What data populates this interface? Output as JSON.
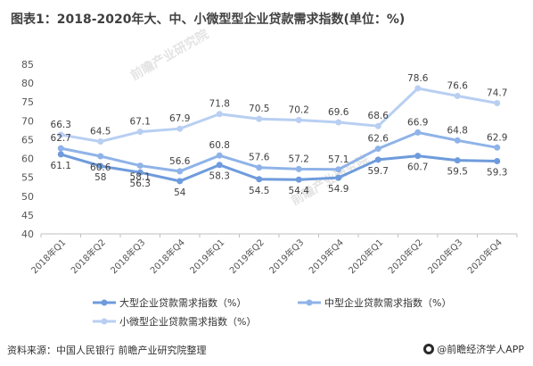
{
  "title": "图表1：2018-2020年大、中、小微型型企业贷款需求指数(单位：%)",
  "source": "资料来源：中国人民银行 前瞻产业研究院整理",
  "brand": "@前瞻经济学人APP",
  "watermark": "前瞻产业研究院",
  "chart_data": {
    "type": "line",
    "title": "图表1：2018-2020年大、中、小微型型企业贷款需求指数(单位：%)",
    "categories": [
      "2018年Q1",
      "2018年Q2",
      "2018年Q3",
      "2018年Q4",
      "2019年Q1",
      "2019年Q2",
      "2019年Q3",
      "2019年Q4",
      "2020年Q1",
      "2020年Q2",
      "2020年Q3",
      "2020年Q4"
    ],
    "ylim": [
      40,
      85
    ],
    "yticks": [
      40,
      45,
      50,
      55,
      60,
      65,
      70,
      75,
      80,
      85
    ],
    "grid": false,
    "legend": "bottom",
    "series": [
      {
        "name": "大型企业贷款需求指数（%）",
        "color": "#6e9bdc",
        "label_pos": "below",
        "values": [
          61.1,
          58,
          56.3,
          54,
          58.3,
          54.5,
          54.4,
          54.9,
          59.7,
          60.7,
          59.5,
          59.3
        ]
      },
      {
        "name": "中型企业贷款需求指数（%）",
        "color": "#8fb3e8",
        "label_pos": "mixed",
        "values": [
          62.7,
          60.6,
          58.1,
          56.6,
          60.8,
          57.6,
          57.2,
          57.1,
          62.6,
          66.9,
          64.8,
          62.9
        ]
      },
      {
        "name": "小微型企业贷款需求指数（%）",
        "color": "#b8cff2",
        "label_pos": "above",
        "values": [
          66.3,
          64.5,
          67.1,
          67.9,
          71.8,
          70.5,
          70.2,
          69.6,
          68.6,
          78.6,
          76.6,
          74.7
        ]
      }
    ]
  }
}
